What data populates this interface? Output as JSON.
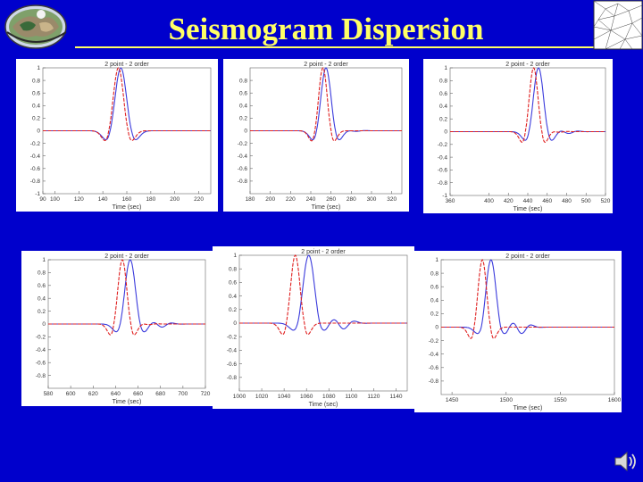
{
  "slide": {
    "title": "Seismogram Dispersion",
    "colors": {
      "background": "#0000cc",
      "title": "#ffff66",
      "blue_series": "#3b3bdc",
      "red_series": "#e02020"
    },
    "icons": [
      "globe-logo-icon",
      "triangle-mesh-icon",
      "speaker-icon"
    ]
  },
  "chart_data": [
    {
      "type": "line",
      "title": "2 point - 2 order",
      "xlabel": "Time (sec)",
      "ylabel": "",
      "xlim": [
        90,
        230
      ],
      "ylim": [
        -1,
        1
      ],
      "xticks": [
        90,
        100,
        120,
        140,
        160,
        180,
        200,
        220
      ],
      "yticks": [
        1,
        0.8,
        0.6,
        0.4,
        0.2,
        0,
        -0.2,
        -0.4,
        -0.6,
        -0.8,
        -1
      ],
      "wave": {
        "center_red": 153,
        "center_blue": 155,
        "width_red": 9,
        "width_blue": 10,
        "neg_amp_red": 0.9,
        "neg_amp_blue": 0.82,
        "coda_red": 0.0,
        "coda_blue": 0.0
      },
      "series": [
        {
          "color": "blue"
        },
        {
          "color": "red"
        }
      ]
    },
    {
      "type": "line",
      "title": "2 point - 2 order",
      "xlabel": "Time (sec)",
      "ylabel": "",
      "xlim": [
        180,
        330
      ],
      "ylim": [
        -1,
        1
      ],
      "xticks": [
        180,
        200,
        220,
        240,
        260,
        280,
        300,
        320
      ],
      "yticks": [
        0.8,
        0.6,
        0.4,
        0.2,
        0,
        -0.2,
        -0.4,
        -0.6,
        -0.8
      ],
      "wave": {
        "center_red": 252,
        "center_blue": 255,
        "width_red": 9,
        "width_blue": 10.5,
        "neg_amp_red": 0.93,
        "neg_amp_blue": 0.83,
        "coda_red": 0.0,
        "coda_blue": 0.01
      },
      "series": [
        {
          "color": "blue"
        },
        {
          "color": "red"
        }
      ]
    },
    {
      "type": "line",
      "title": "2 point - 2 order",
      "xlabel": "Time (sec)",
      "ylabel": "",
      "xlim": [
        360,
        520
      ],
      "ylim": [
        -1,
        1
      ],
      "xticks": [
        360,
        400,
        420,
        440,
        460,
        480,
        500,
        520
      ],
      "yticks": [
        1,
        0.8,
        0.6,
        0.4,
        0.2,
        0,
        -0.2,
        -0.4,
        -0.6,
        -0.8,
        -1
      ],
      "wave": {
        "center_red": 446,
        "center_blue": 451,
        "width_red": 9.5,
        "width_blue": 11,
        "neg_amp_red": 0.96,
        "neg_amp_blue": 0.78,
        "coda_red": 0.01,
        "coda_blue": 0.03
      },
      "series": [
        {
          "color": "blue"
        },
        {
          "color": "red"
        }
      ]
    },
    {
      "type": "line",
      "title": "2 point - 2 order",
      "xlabel": "Time (sec)",
      "ylabel": "",
      "xlim": [
        580,
        720
      ],
      "ylim": [
        -1,
        1
      ],
      "xticks": [
        580,
        600,
        620,
        640,
        660,
        680,
        700,
        720
      ],
      "yticks": [
        1,
        0.8,
        0.6,
        0.4,
        0.2,
        0,
        -0.2,
        -0.4,
        -0.6,
        -0.8
      ],
      "wave": {
        "center_red": 646,
        "center_blue": 653,
        "width_red": 8.5,
        "width_blue": 10,
        "neg_amp_red": 0.97,
        "neg_amp_blue": 0.7,
        "coda_red": 0.01,
        "coda_blue": 0.05
      },
      "series": [
        {
          "color": "blue"
        },
        {
          "color": "red"
        }
      ]
    },
    {
      "type": "line",
      "title": "2 point - 2 order",
      "xlabel": "Time (sec)",
      "ylabel": "",
      "xlim": [
        1000,
        1150
      ],
      "ylim": [
        -1,
        1
      ],
      "xticks": [
        1000,
        1020,
        1040,
        1060,
        1080,
        1100,
        1120,
        1140
      ],
      "yticks": [
        1,
        0.8,
        0.6,
        0.4,
        0.2,
        0,
        -0.2,
        -0.4,
        -0.6,
        -0.8
      ],
      "wave": {
        "center_red": 1050,
        "center_blue": 1062,
        "width_red": 9,
        "width_blue": 11,
        "neg_amp_red": 0.97,
        "neg_amp_blue": 0.6,
        "coda_red": 0.0,
        "coda_blue": 0.09
      },
      "series": [
        {
          "color": "blue"
        },
        {
          "color": "red"
        }
      ]
    },
    {
      "type": "line",
      "title": "2 point - 2 order",
      "xlabel": "Time (sec)",
      "ylabel": "",
      "xlim": [
        1440,
        1600
      ],
      "ylim": [
        -1,
        1
      ],
      "xticks": [
        1450,
        1500,
        1550,
        1600
      ],
      "yticks": [
        1,
        0.8,
        0.6,
        0.4,
        0.2,
        0,
        -0.2,
        -0.4,
        -0.6,
        -0.8
      ],
      "wave": {
        "center_red": 1478,
        "center_blue": 1486,
        "width_red": 8.5,
        "width_blue": 10,
        "neg_amp_red": 0.97,
        "neg_amp_blue": 0.55,
        "coda_red": 0.0,
        "coda_blue": 0.1
      },
      "series": [
        {
          "color": "blue"
        },
        {
          "color": "red"
        }
      ]
    }
  ]
}
